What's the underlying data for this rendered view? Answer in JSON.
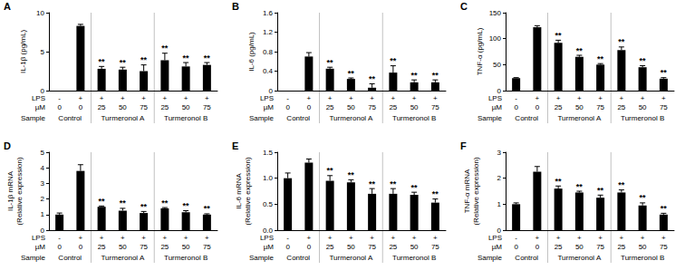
{
  "chart_data": [
    {
      "type": "bar",
      "title": "A",
      "y_label": "IL-1β (pg/mL)",
      "color": "#000000",
      "categories": [
        "0",
        "0",
        "25",
        "50",
        "75",
        "25",
        "50",
        "75"
      ],
      "values": [
        0,
        8.3,
        2.8,
        2.7,
        2.5,
        3.9,
        3.1,
        3.3
      ],
      "errors": [
        0,
        0.2,
        0.3,
        0.3,
        0.8,
        0.9,
        0.5,
        0.3
      ],
      "significance": [
        null,
        null,
        "**",
        "**",
        "**",
        "**",
        "**",
        "**"
      ],
      "ylim": [
        0,
        10
      ],
      "yticks": [
        0,
        5,
        10
      ],
      "x_label": "µM",
      "lps": {
        "label": "LPS",
        "values": [
          "-",
          "+",
          "+",
          "+",
          "+",
          "+",
          "+",
          "+"
        ]
      },
      "sample": {
        "label": "Sample",
        "groups": [
          "Control",
          "Turmeronol A",
          "Turmeronol B"
        ],
        "group_sizes": [
          2,
          3,
          3
        ]
      }
    },
    {
      "type": "bar",
      "title": "B",
      "y_label": "IL-6 (pg/mL)",
      "color": "#000000",
      "categories": [
        "0",
        "0",
        "25",
        "50",
        "75",
        "25",
        "50",
        "75"
      ],
      "values": [
        0,
        0.7,
        0.45,
        0.24,
        0.06,
        0.37,
        0.17,
        0.17
      ],
      "errors": [
        0,
        0.08,
        0.03,
        0.02,
        0.08,
        0.14,
        0.05,
        0.05
      ],
      "significance": [
        null,
        null,
        "**",
        "**",
        "**",
        "**",
        "**",
        "**"
      ],
      "ylim": [
        0,
        1.6
      ],
      "yticks": [
        0,
        0.4,
        0.8,
        1.2,
        1.6
      ],
      "x_label": "µM",
      "lps": {
        "label": "LPS",
        "values": [
          "-",
          "+",
          "+",
          "+",
          "+",
          "+",
          "+",
          "+"
        ]
      },
      "sample": {
        "label": "Sample",
        "groups": [
          "Control",
          "Turmeronol A",
          "Turmeronol B"
        ],
        "group_sizes": [
          2,
          3,
          3
        ]
      }
    },
    {
      "type": "bar",
      "title": "C",
      "y_label": "TNF-α (pg/mL)",
      "color": "#000000",
      "categories": [
        "0",
        "0",
        "25",
        "50",
        "75",
        "25",
        "50",
        "75"
      ],
      "values": [
        24,
        122,
        92,
        65,
        50,
        78,
        45,
        23
      ],
      "errors": [
        1,
        3,
        5,
        3,
        2,
        6,
        3,
        2
      ],
      "significance": [
        null,
        null,
        "**",
        "**",
        "**",
        "**",
        "**",
        "**"
      ],
      "ylim": [
        0,
        150
      ],
      "yticks": [
        0,
        50,
        100,
        150
      ],
      "x_label": "µM",
      "lps": {
        "label": "LPS",
        "values": [
          "-",
          "+",
          "+",
          "+",
          "+",
          "+",
          "+",
          "+"
        ]
      },
      "sample": {
        "label": "Sample",
        "groups": [
          "Control",
          "Turmeronol A",
          "Turmeronol B"
        ],
        "group_sizes": [
          2,
          3,
          3
        ]
      }
    },
    {
      "type": "bar",
      "title": "D",
      "y_label": "IL-1β mRNA\n(Relative expression)",
      "color": "#000000",
      "categories": [
        "0",
        "0",
        "25",
        "50",
        "75",
        "25",
        "50",
        "75"
      ],
      "values": [
        1.0,
        3.8,
        1.5,
        1.25,
        1.1,
        1.4,
        1.15,
        1.0
      ],
      "errors": [
        0.1,
        0.4,
        0.05,
        0.15,
        0.1,
        0.05,
        0.1,
        0.05
      ],
      "significance": [
        null,
        null,
        "**",
        "**",
        "**",
        "**",
        "**",
        "**"
      ],
      "ylim": [
        0,
        5
      ],
      "yticks": [
        0,
        1,
        2,
        3,
        4,
        5
      ],
      "x_label": "µM",
      "lps": {
        "label": "LPS",
        "values": [
          "-",
          "+",
          "+",
          "+",
          "+",
          "+",
          "+",
          "+"
        ]
      },
      "sample": {
        "label": "Sample",
        "groups": [
          "Control",
          "Turmeronol A",
          "Turmeronol B"
        ],
        "group_sizes": [
          2,
          3,
          3
        ]
      }
    },
    {
      "type": "bar",
      "title": "E",
      "y_label": "IL-6 mRNA\n(Relative expression)",
      "color": "#000000",
      "categories": [
        "0",
        "0",
        "25",
        "50",
        "75",
        "25",
        "50",
        "75"
      ],
      "values": [
        1.0,
        1.3,
        0.95,
        0.92,
        0.7,
        0.7,
        0.68,
        0.53
      ],
      "errors": [
        0.1,
        0.07,
        0.1,
        0.05,
        0.1,
        0.1,
        0.05,
        0.07
      ],
      "significance": [
        null,
        null,
        "**",
        "**",
        "**",
        "**",
        "**",
        "**"
      ],
      "ylim": [
        0,
        1.5
      ],
      "yticks": [
        {
          "value": 0,
          "label": "0.0"
        },
        {
          "value": 0.5,
          "label": "0.5"
        },
        {
          "value": 1,
          "label": "1.0"
        },
        {
          "value": 1.5,
          "label": "1.5"
        }
      ],
      "x_label": "µM",
      "lps": {
        "label": "LPS",
        "values": [
          "-",
          "+",
          "+",
          "+",
          "+",
          "+",
          "+",
          "+"
        ]
      },
      "sample": {
        "label": "Sample",
        "groups": [
          "Control",
          "Turmeronol A",
          "Turmeronol B"
        ],
        "group_sizes": [
          2,
          3,
          3
        ]
      }
    },
    {
      "type": "bar",
      "title": "F",
      "y_label": "TNF-α mRNA\n(Relative expression)",
      "color": "#000000",
      "categories": [
        "0",
        "0",
        "25",
        "50",
        "75",
        "25",
        "50",
        "75"
      ],
      "values": [
        1.0,
        2.25,
        1.6,
        1.45,
        1.25,
        1.45,
        0.95,
        0.6
      ],
      "errors": [
        0.05,
        0.2,
        0.1,
        0.05,
        0.1,
        0.1,
        0.1,
        0.05
      ],
      "significance": [
        null,
        null,
        "**",
        "**",
        "**",
        "**",
        "**",
        "**"
      ],
      "ylim": [
        0,
        3
      ],
      "yticks": [
        0,
        1,
        2,
        3
      ],
      "x_label": "µM",
      "lps": {
        "label": "LPS",
        "values": [
          "-",
          "+",
          "+",
          "+",
          "+",
          "+",
          "+",
          "+"
        ]
      },
      "sample": {
        "label": "Sample",
        "groups": [
          "Control",
          "Turmeronol A",
          "Turmeronol B"
        ],
        "group_sizes": [
          2,
          3,
          3
        ]
      }
    }
  ]
}
